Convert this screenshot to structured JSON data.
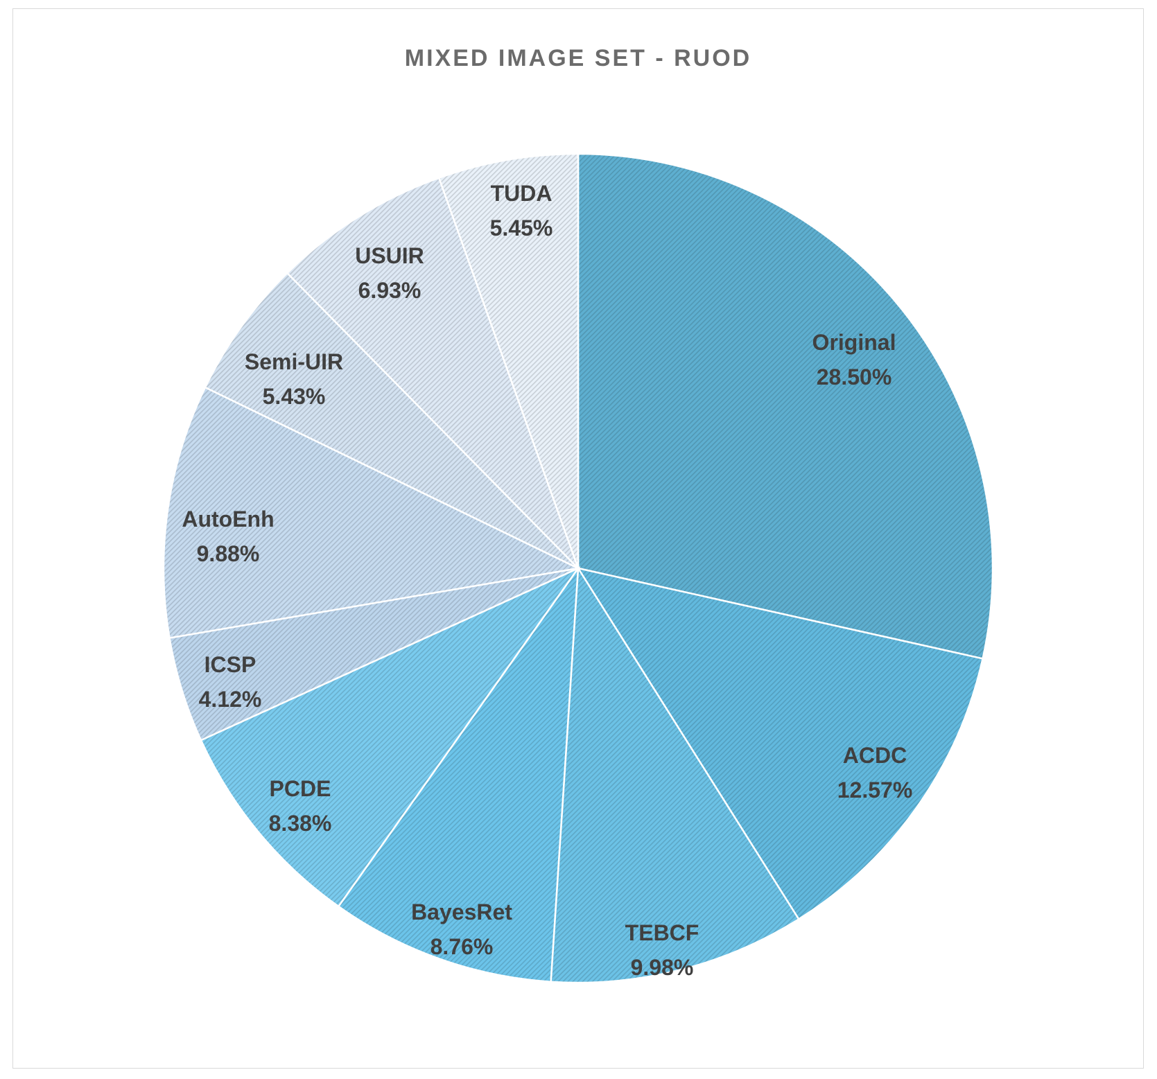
{
  "chart_data": {
    "type": "pie",
    "title": "MIXED IMAGE SET - RUOD",
    "start_angle": "12 o'clock",
    "direction": "clockwise",
    "slices": [
      {
        "label": "Original",
        "value": 28.5,
        "value_label": "28.50%",
        "color": "#5eafd0"
      },
      {
        "label": "ACDC",
        "value": 12.57,
        "value_label": "12.57%",
        "color": "#62b9de"
      },
      {
        "label": "TEBCF",
        "value": 9.98,
        "value_label": "9.98%",
        "color": "#6cc2e6"
      },
      {
        "label": "BayesRet",
        "value": 8.76,
        "value_label": "8.76%",
        "color": "#6cc4ea"
      },
      {
        "label": "PCDE",
        "value": 8.38,
        "value_label": "8.38%",
        "color": "#7acbee"
      },
      {
        "label": "ICSP",
        "value": 4.12,
        "value_label": "4.12%",
        "color": "#bcd5ec"
      },
      {
        "label": "AutoEnh",
        "value": 9.88,
        "value_label": "9.88%",
        "color": "#c6dbef"
      },
      {
        "label": "Semi-UIR",
        "value": 5.43,
        "value_label": "5.43%",
        "color": "#d3e2f1"
      },
      {
        "label": "USUIR",
        "value": 6.93,
        "value_label": "6.93%",
        "color": "#dee9f5"
      },
      {
        "label": "TUDA",
        "value": 5.45,
        "value_label": "5.45%",
        "color": "#e9f1f9"
      }
    ]
  }
}
